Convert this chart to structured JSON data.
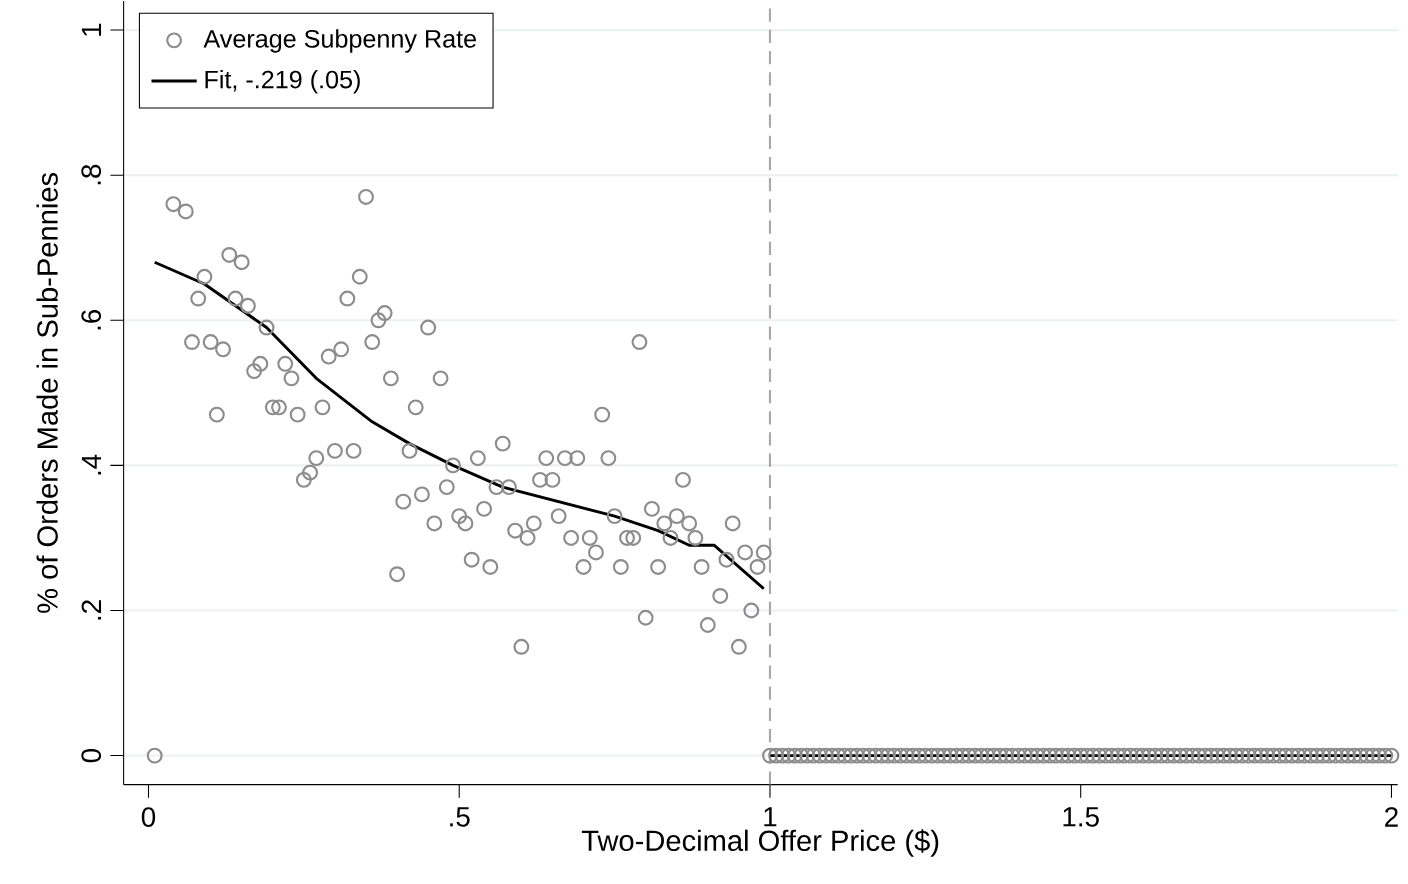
{
  "chart_data": {
    "type": "scatter",
    "xlabel": "Two-Decimal Offer Price ($)",
    "ylabel": "% of Orders Made in Sub-Pennies",
    "xlim": [
      -0.04,
      2.01
    ],
    "ylim": [
      -0.04,
      1.04
    ],
    "xticks": [
      0,
      {
        "value": 0.5,
        "label": ".5"
      },
      1,
      1.5,
      2
    ],
    "yticks": [
      0,
      {
        "value": 0.2,
        "label": ".2"
      },
      {
        "value": 0.4,
        "label": ".4"
      },
      {
        "value": 0.6,
        "label": ".6"
      },
      {
        "value": 0.8,
        "label": ".8"
      },
      1
    ],
    "grid": "y",
    "legend": "top left",
    "ref_lines": [
      {
        "axis": "x",
        "value": 1,
        "color": "#a8a8a8",
        "line_style": "dashed"
      }
    ],
    "series": [
      {
        "name": "Average Subpenny Rate",
        "color": "#8c8c8c",
        "marker": "circle",
        "x": [
          0.01,
          0.04,
          0.06,
          0.09,
          0.08,
          0.07,
          0.1,
          0.12,
          0.11,
          0.13,
          0.15,
          0.14,
          0.16,
          0.19,
          0.17,
          0.18,
          0.22,
          0.23,
          0.2,
          0.21,
          0.24,
          0.28,
          0.25,
          0.26,
          0.27,
          0.3,
          0.33,
          0.29,
          0.31,
          0.32,
          0.34,
          0.35,
          0.36,
          0.37,
          0.38,
          0.39,
          0.43,
          0.42,
          0.45,
          0.47,
          0.41,
          0.44,
          0.46,
          0.48,
          0.49,
          0.4,
          0.79,
          0.73,
          0.57,
          0.53,
          0.64,
          0.67,
          0.69,
          0.74,
          0.56,
          0.58,
          0.63,
          0.65,
          0.86,
          0.54,
          0.75,
          0.81,
          0.83,
          0.85,
          0.87,
          0.94,
          0.66,
          0.5,
          0.51,
          0.59,
          0.62,
          0.61,
          0.68,
          0.71,
          0.77,
          0.78,
          0.84,
          0.88,
          0.72,
          0.96,
          0.99,
          0.52,
          0.55,
          0.7,
          0.76,
          0.82,
          0.89,
          0.93,
          0.98,
          0.92,
          0.97,
          0.8,
          0.9,
          0.95,
          0.6,
          1,
          1.01,
          1.02,
          1.03,
          1.04,
          1.05,
          1.06,
          1.07,
          1.08,
          1.09,
          1.1,
          1.11,
          1.12,
          1.13,
          1.14,
          1.15,
          1.16,
          1.17,
          1.18,
          1.19,
          1.2,
          1.21,
          1.22,
          1.23,
          1.24,
          1.25,
          1.26,
          1.27,
          1.28,
          1.29,
          1.3,
          1.31,
          1.32,
          1.33,
          1.34,
          1.35,
          1.36,
          1.37,
          1.38,
          1.39,
          1.4,
          1.41,
          1.42,
          1.43,
          1.44,
          1.45,
          1.46,
          1.47,
          1.48,
          1.49,
          1.5,
          1.51,
          1.52,
          1.53,
          1.54,
          1.55,
          1.56,
          1.57,
          1.58,
          1.59,
          1.6,
          1.61,
          1.62,
          1.63,
          1.64,
          1.65,
          1.66,
          1.67,
          1.68,
          1.69,
          1.7,
          1.71,
          1.72,
          1.73,
          1.74,
          1.75,
          1.76,
          1.77,
          1.78,
          1.79,
          1.8,
          1.81,
          1.82,
          1.83,
          1.84,
          1.85,
          1.86,
          1.87,
          1.88,
          1.89,
          1.9,
          1.91,
          1.92,
          1.93,
          1.94,
          1.95,
          1.96,
          1.97,
          1.98,
          1.99,
          2
        ],
        "values": [
          0,
          0.76,
          0.75,
          0.66,
          0.63,
          0.57,
          0.57,
          0.56,
          0.47,
          0.69,
          0.68,
          0.63,
          0.62,
          0.59,
          0.53,
          0.54,
          0.54,
          0.52,
          0.48,
          0.48,
          0.47,
          0.48,
          0.38,
          0.39,
          0.41,
          0.42,
          0.42,
          0.55,
          0.56,
          0.63,
          0.66,
          0.77,
          0.57,
          0.6,
          0.61,
          0.52,
          0.48,
          0.42,
          0.59,
          0.52,
          0.35,
          0.36,
          0.32,
          0.37,
          0.4,
          0.25,
          0.57,
          0.47,
          0.43,
          0.41,
          0.41,
          0.41,
          0.41,
          0.41,
          0.37,
          0.37,
          0.38,
          0.38,
          0.38,
          0.34,
          0.33,
          0.34,
          0.32,
          0.33,
          0.32,
          0.32,
          0.33,
          0.33,
          0.32,
          0.31,
          0.32,
          0.3,
          0.3,
          0.3,
          0.3,
          0.3,
          0.3,
          0.3,
          0.28,
          0.28,
          0.28,
          0.27,
          0.26,
          0.26,
          0.26,
          0.26,
          0.26,
          0.27,
          0.26,
          0.22,
          0.2,
          0.19,
          0.18,
          0.15,
          0.15,
          0,
          0,
          0,
          0,
          0,
          0,
          0,
          0,
          0,
          0,
          0,
          0,
          0,
          0,
          0,
          0,
          0,
          0,
          0,
          0,
          0,
          0,
          0,
          0,
          0,
          0,
          0,
          0,
          0,
          0,
          0,
          0,
          0,
          0,
          0,
          0,
          0,
          0,
          0,
          0,
          0,
          0,
          0,
          0,
          0,
          0,
          0,
          0,
          0,
          0,
          0,
          0,
          0,
          0,
          0,
          0,
          0,
          0,
          0,
          0,
          0,
          0,
          0,
          0,
          0,
          0,
          0,
          0,
          0,
          0,
          0,
          0,
          0,
          0,
          0,
          0,
          0,
          0,
          0,
          0,
          0,
          0,
          0,
          0,
          0,
          0,
          0,
          0,
          0,
          0,
          0,
          0,
          0,
          0,
          0,
          0,
          0,
          0,
          0,
          0,
          0
        ]
      },
      {
        "name": "Fit, -.219 (.05)",
        "type": "line",
        "color": "#000000",
        "marker": "none",
        "line_style": "solid",
        "x": [
          0.01,
          0.09,
          0.19,
          0.27,
          0.36,
          0.42,
          0.49,
          0.57,
          0.66,
          0.75,
          0.82,
          0.87,
          0.91,
          0.95,
          0.99,
          null,
          1,
          2
        ],
        "values": [
          0.68,
          0.65,
          0.59,
          0.52,
          0.46,
          0.43,
          0.4,
          0.37,
          0.35,
          0.33,
          0.31,
          0.29,
          0.29,
          0.26,
          0.23,
          null,
          0,
          0
        ]
      }
    ]
  }
}
